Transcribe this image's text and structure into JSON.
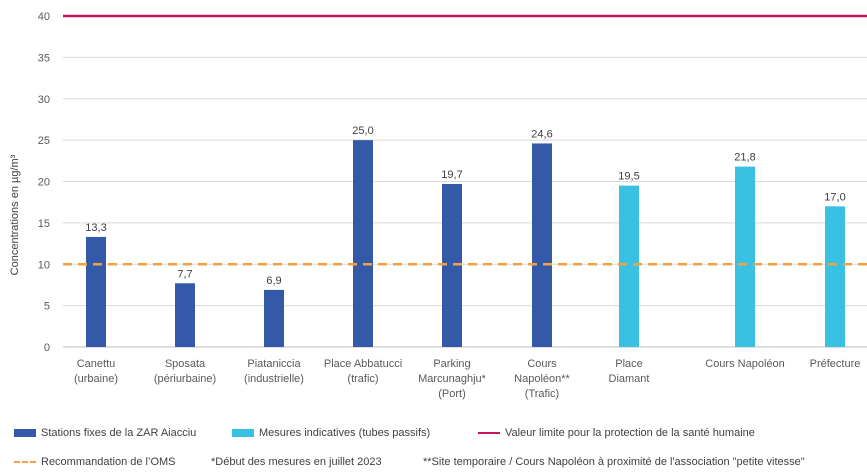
{
  "chart_data": {
    "type": "bar",
    "ylabel": "Concentrations en µg/m³",
    "ylim": [
      0,
      40
    ],
    "yticks": [
      0,
      5,
      10,
      15,
      20,
      25,
      30,
      35,
      40
    ],
    "grid": true,
    "legend_position": "bottom",
    "categories": [
      [
        "Canettu",
        "(urbaine)"
      ],
      [
        "Sposata",
        "(périurbaine)"
      ],
      [
        "Piataniccia",
        "(industrielle)"
      ],
      [
        "Place Abbatucci",
        "(trafic)"
      ],
      [
        "Parking",
        "Marcunaghju*",
        "(Port)"
      ],
      [
        "Cours",
        "Napoléon**",
        "(Trafic)"
      ],
      [
        "Place",
        "Diamant"
      ],
      [
        "Cours Napoléon"
      ],
      [
        "Préfecture"
      ]
    ],
    "values": [
      13.3,
      7.7,
      6.9,
      25.0,
      19.7,
      24.6,
      19.5,
      21.8,
      17.0
    ],
    "value_labels": [
      "13,3",
      "7,7",
      "6,9",
      "25,0",
      "19,7",
      "24,6",
      "19,5",
      "21,8",
      "17,0"
    ],
    "bar_series": [
      0,
      0,
      0,
      0,
      0,
      0,
      1,
      1,
      1
    ],
    "series": [
      {
        "name": "Stations fixes de la ZAR Aiacciu",
        "color": "#3359a8"
      },
      {
        "name": "Mesures indicatives (tubes passifs)",
        "color": "#38c1e3"
      }
    ],
    "reference_lines": [
      {
        "name": "Valeur limite pour la protection de la santé humaine",
        "value": 40,
        "color": "#c0185a",
        "style": "solid"
      },
      {
        "name": "Recommandation de l’OMS",
        "value": 10,
        "color": "#f4a142",
        "style": "dashed"
      }
    ]
  },
  "footnotes": [
    "*Début des mesures en juillet 2023",
    "**Site temporaire / Cours Napoléon à proximité de l'association \"petite vitesse\""
  ]
}
